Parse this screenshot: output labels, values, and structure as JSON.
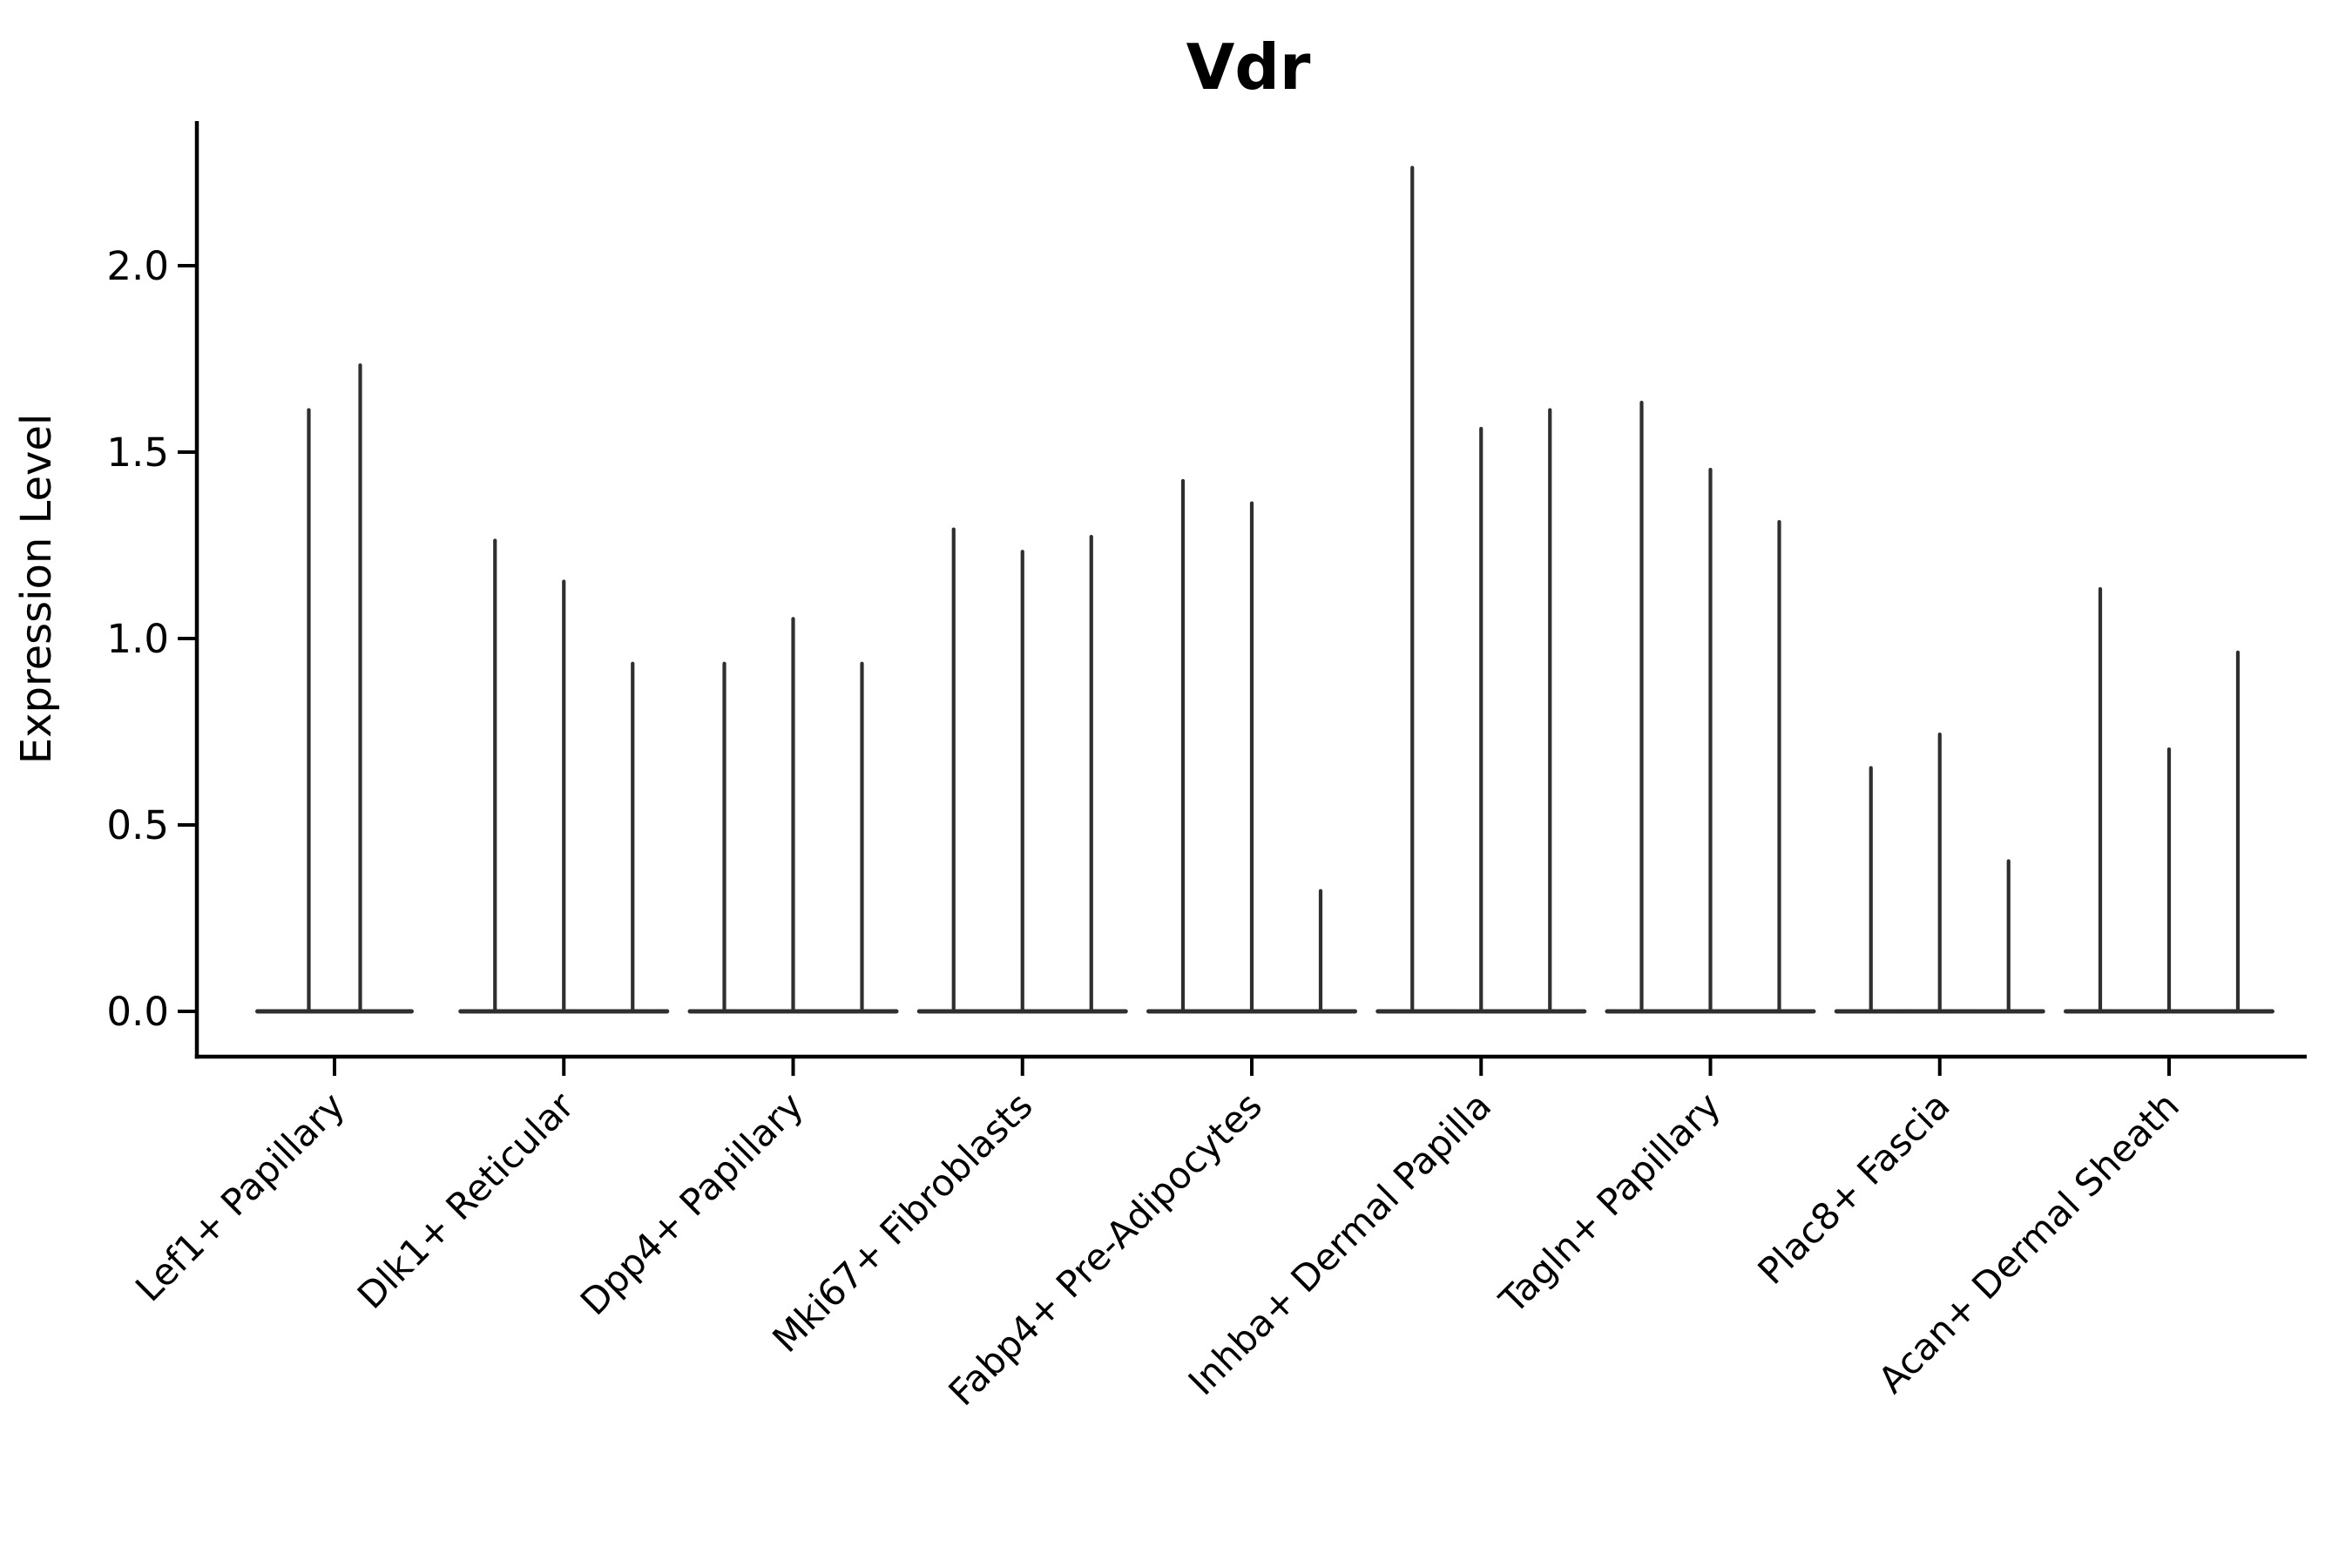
{
  "title": "Vdr",
  "axes": {
    "ylabel": "Expression Level",
    "y_tick_labels": [
      "0.0",
      "0.5",
      "1.0",
      "1.5",
      "2.0"
    ],
    "y_tick_values": [
      0.0,
      0.5,
      1.0,
      1.5,
      2.0
    ]
  },
  "colors": {
    "violin": "#2f2f2f",
    "axis": "#000000",
    "background": "#ffffff"
  },
  "chart_data": {
    "type": "violin",
    "title": "Vdr",
    "xlabel": "",
    "ylabel": "Expression Level",
    "ylim": [
      -0.12,
      2.4
    ],
    "y_ticks": [
      0.0,
      0.5,
      1.0,
      1.5,
      2.0
    ],
    "grid": false,
    "legend": "none",
    "x_tick_rotation_deg": 45,
    "note": "Each category holds thin needle violins: dense mass at 0 (flat base) with a narrow spike up to the listed maximum expression value.",
    "categories": [
      "Lef1+ Papillary",
      "Dlk1+ Reticular",
      "Dpp4+ Papillary",
      "Mki67+ Fibroblasts",
      "Fabp4+ Pre-Adipocytes",
      "Inhba+ Dermal Papilla",
      "Tagln+ Papillary",
      "Plac8+ Fascia",
      "Acan+ Dermal Sheath"
    ],
    "groups": [
      {
        "category": "Lef1+ Papillary",
        "violin_maxima": [
          1.62,
          1.74
        ]
      },
      {
        "category": "Dlk1+ Reticular",
        "violin_maxima": [
          1.27,
          1.16,
          0.94
        ]
      },
      {
        "category": "Dpp4+ Papillary",
        "violin_maxima": [
          0.94,
          1.06,
          0.94
        ]
      },
      {
        "category": "Mki67+ Fibroblasts",
        "violin_maxima": [
          1.3,
          1.24,
          1.28
        ]
      },
      {
        "category": "Fabp4+ Pre-Adipocytes",
        "violin_maxima": [
          1.43,
          1.37,
          0.33
        ]
      },
      {
        "category": "Inhba+ Dermal Papilla",
        "violin_maxima": [
          2.27,
          1.57,
          1.62
        ]
      },
      {
        "category": "Tagln+ Papillary",
        "violin_maxima": [
          1.64,
          1.46,
          1.32
        ]
      },
      {
        "category": "Plac8+ Fascia",
        "violin_maxima": [
          0.66,
          0.75,
          0.41
        ]
      },
      {
        "category": "Acan+ Dermal Sheath",
        "violin_maxima": [
          1.14,
          0.71,
          0.97
        ]
      }
    ]
  }
}
